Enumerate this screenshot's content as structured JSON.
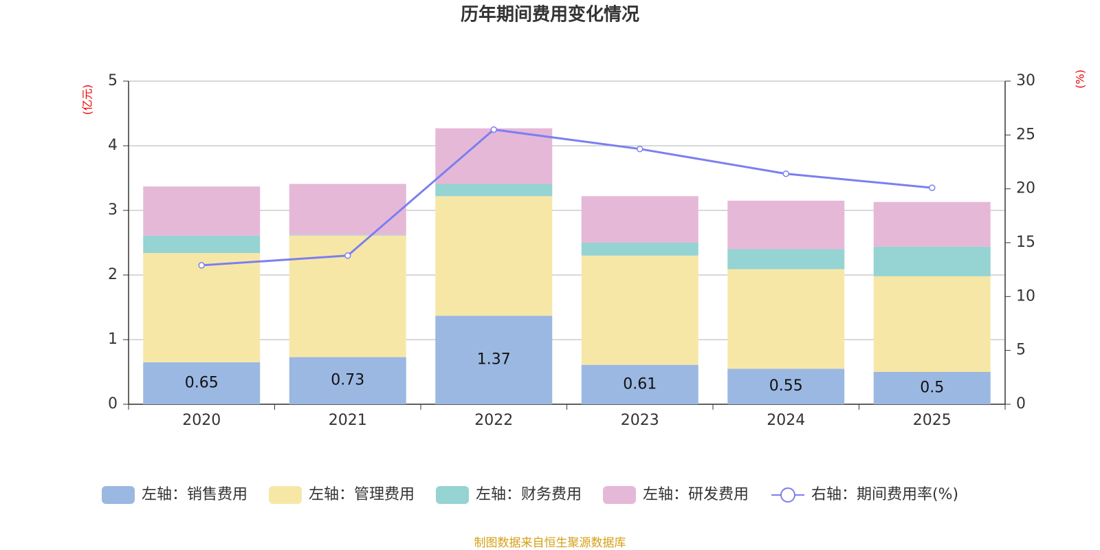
{
  "chart_data": {
    "type": "bar",
    "stacked": true,
    "title": "历年期间费用变化情况",
    "y_label": "(亿元)",
    "y2_label": "(%)",
    "source": "制图数据来自恒生聚源数据库",
    "categories": [
      "2020",
      "2021",
      "2022",
      "2023",
      "2024",
      "2025"
    ],
    "series": [
      {
        "name": "左轴：销售费用",
        "color": "#9bb8e2",
        "values": [
          0.65,
          0.73,
          1.37,
          0.61,
          0.55,
          0.5
        ],
        "data_labels": true
      },
      {
        "name": "左轴：管理费用",
        "color": "#f7e7a7",
        "values": [
          1.69,
          1.88,
          1.85,
          1.69,
          1.54,
          1.48
        ]
      },
      {
        "name": "左轴：财务费用",
        "color": "#96d3d3",
        "values": [
          0.27,
          0.01,
          0.19,
          0.2,
          0.31,
          0.46
        ]
      },
      {
        "name": "左轴：研发费用",
        "color": "#e6b8d8",
        "values": [
          0.76,
          0.79,
          0.86,
          0.72,
          0.75,
          0.69
        ]
      },
      {
        "name": "右轴：期间费用率(%)",
        "color": "#7b7fef",
        "type": "line",
        "axis": "y2",
        "values": [
          12.9,
          13.8,
          25.5,
          23.7,
          21.4,
          20.1
        ]
      }
    ],
    "ylim": [
      0,
      5
    ],
    "yticks": [
      0,
      1,
      2,
      3,
      4,
      5
    ],
    "y2lim": [
      0,
      30
    ],
    "y2ticks": [
      0,
      5,
      10,
      15,
      20,
      25,
      30
    ],
    "grid": true
  }
}
